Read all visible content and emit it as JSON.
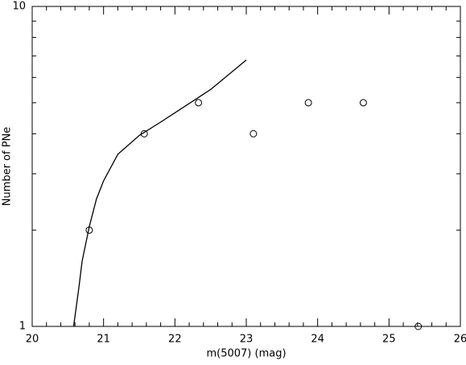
{
  "chart_data": {
    "type": "scatter",
    "xlabel": "m(5007) (mag)",
    "ylabel": "Number of PNe",
    "xlim": [
      20,
      26
    ],
    "ylim": [
      1,
      10
    ],
    "yscale": "log",
    "xticks": [
      20,
      21,
      22,
      23,
      24,
      25,
      26
    ],
    "xminorticks": [
      20.2,
      20.4,
      20.6,
      20.8,
      21.2,
      21.4,
      21.6,
      21.8,
      22.2,
      22.4,
      22.6,
      22.8,
      23.2,
      23.4,
      23.6,
      23.8,
      24.2,
      24.4,
      24.6,
      24.8,
      25.2,
      25.4,
      25.6,
      25.8
    ],
    "yticks": [
      1,
      10
    ],
    "yminorticks": [
      2,
      3,
      4,
      5,
      6,
      7,
      8,
      9
    ],
    "series": [
      {
        "style": "markers",
        "color": "#000000",
        "x": [
          20.8,
          21.57,
          22.33,
          23.1,
          23.87,
          24.64,
          25.41
        ],
        "values": [
          2,
          4,
          5,
          4,
          5,
          5,
          1
        ]
      },
      {
        "style": "line",
        "color": "#000000",
        "x": [
          20.58,
          20.65,
          20.7,
          20.8,
          20.9,
          21.0,
          21.2,
          21.5,
          21.8,
          22.0,
          22.5,
          23.0
        ],
        "values": [
          1,
          1.3,
          1.6,
          2.05,
          2.5,
          2.85,
          3.45,
          3.95,
          4.35,
          4.65,
          5.5,
          6.8
        ]
      }
    ]
  }
}
